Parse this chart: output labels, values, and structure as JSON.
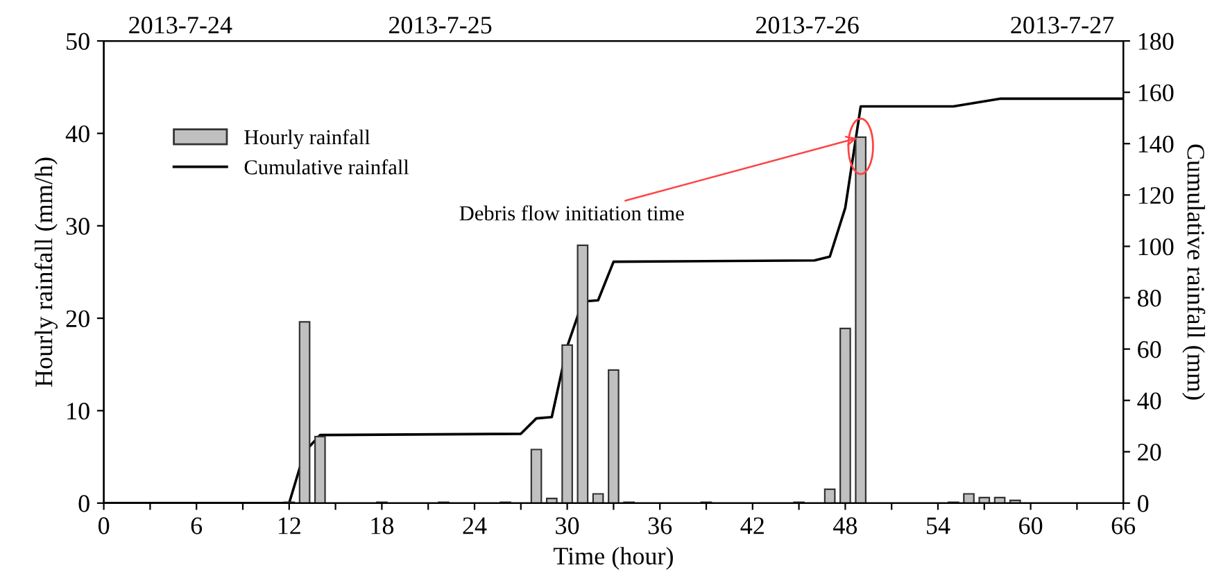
{
  "chart_data": {
    "type": "bar",
    "xlabel": "Time (hour)",
    "ylabel": "Hourly rainfall (mm/h)",
    "y2label": "Cumulative rainfall (mm)",
    "series": [
      {
        "name": "Hourly rainfall",
        "color": "#c0c0c0",
        "x": [
          12,
          13,
          14,
          18,
          22,
          26,
          28,
          29,
          30,
          31,
          32,
          33,
          34,
          39,
          45,
          47,
          48,
          49,
          55,
          56,
          57,
          58,
          59
        ],
        "values": [
          0.1,
          19.6,
          7.2,
          0.1,
          0.1,
          0.1,
          5.8,
          0.5,
          17.1,
          27.9,
          1.0,
          14.4,
          0.1,
          0.1,
          0.1,
          1.5,
          18.9,
          39.6,
          0.1,
          1.0,
          0.6,
          0.6,
          0.3
        ]
      },
      {
        "name": "Cumulative rainfall",
        "type": "line",
        "axis": "y2",
        "color": "#000000",
        "x": [
          0,
          12,
          13,
          14,
          27,
          28,
          29,
          30,
          31,
          32,
          33,
          46,
          47,
          48,
          49,
          55,
          58,
          66
        ],
        "values": [
          0,
          0,
          20,
          26.5,
          27,
          33,
          33.5,
          61,
          78.5,
          79,
          94,
          94.5,
          96,
          115,
          154.5,
          154.5,
          157.5,
          157.5
        ]
      }
    ],
    "xlim": [
      0,
      66
    ],
    "xticks": [
      0,
      {
        "value": 3,
        "label": null
      },
      6,
      {
        "value": 9,
        "label": null
      },
      12,
      {
        "value": 15,
        "label": null
      },
      18,
      {
        "value": 21,
        "label": null
      },
      24,
      {
        "value": 27,
        "label": null
      },
      30,
      {
        "value": 33,
        "label": null
      },
      36,
      {
        "value": 39,
        "label": null
      },
      42,
      {
        "value": 45,
        "label": null
      },
      48,
      {
        "value": 51,
        "label": null
      },
      54,
      {
        "value": 57,
        "label": null
      },
      60,
      {
        "value": 63,
        "label": null
      },
      66
    ],
    "ylim": [
      0,
      50
    ],
    "yticks": [
      0,
      10,
      20,
      30,
      40,
      50
    ],
    "y2lim": [
      0,
      180
    ],
    "y2ticks": [
      0,
      20,
      40,
      60,
      80,
      100,
      120,
      140,
      160,
      180
    ],
    "annotations": [
      "2013-7-24",
      "2013-7-25",
      "2013-7-26",
      "2013-7-27",
      {
        "text": "Debris flow initiation time",
        "x": 49,
        "y": 39.6
      }
    ],
    "legend": "top left",
    "grid": false
  }
}
